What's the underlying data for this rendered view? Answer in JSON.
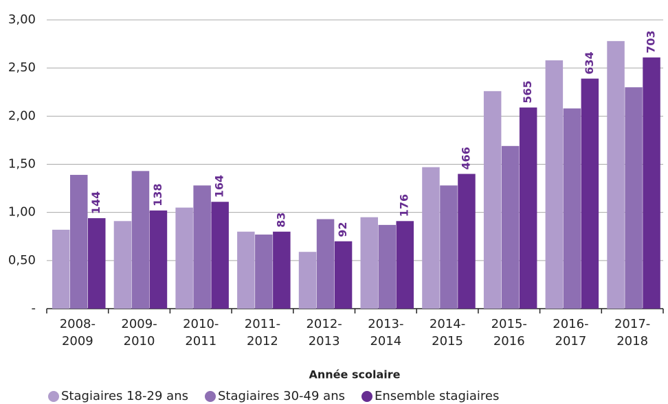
{
  "chart_data": {
    "type": "bar",
    "x_label": "Année scolaire",
    "categories": [
      [
        "2008-",
        "2009"
      ],
      [
        "2009-",
        "2010"
      ],
      [
        "2010-",
        "2011"
      ],
      [
        "2011-",
        "2012"
      ],
      [
        "2012-",
        "2013"
      ],
      [
        "2013-",
        "2014"
      ],
      [
        "2014-",
        "2015"
      ],
      [
        "2015-",
        "2016"
      ],
      [
        "2016-",
        "2017"
      ],
      [
        "2017-",
        "2018"
      ]
    ],
    "series": [
      {
        "name": "Stagiaires 18-29 ans",
        "color": "#b09ccc",
        "values": [
          0.82,
          0.91,
          1.05,
          0.8,
          0.59,
          0.95,
          1.47,
          2.26,
          2.58,
          2.78
        ]
      },
      {
        "name": "Stagiaires 30-49 ans",
        "color": "#8e6fb3",
        "values": [
          1.39,
          1.43,
          1.28,
          0.77,
          0.93,
          0.87,
          1.28,
          1.69,
          2.08,
          2.3
        ]
      },
      {
        "name": "Ensemble stagiaires",
        "color": "#662d91",
        "values": [
          0.94,
          1.02,
          1.11,
          0.8,
          0.7,
          0.91,
          1.4,
          2.09,
          2.39,
          2.61
        ],
        "counts": [
          144,
          138,
          164,
          83,
          92,
          176,
          466,
          565,
          634,
          703
        ]
      }
    ],
    "ylim": [
      0,
      3
    ],
    "yticks": [
      {
        "value": 0,
        "label": "-"
      },
      {
        "value": 0.5,
        "label": "0,50"
      },
      {
        "value": 1,
        "label": "1,00"
      },
      {
        "value": 1.5,
        "label": "1,50"
      },
      {
        "value": 2,
        "label": "2,00"
      },
      {
        "value": 2.5,
        "label": "2,50"
      },
      {
        "value": 3,
        "label": "3,00"
      }
    ],
    "grid": true
  }
}
